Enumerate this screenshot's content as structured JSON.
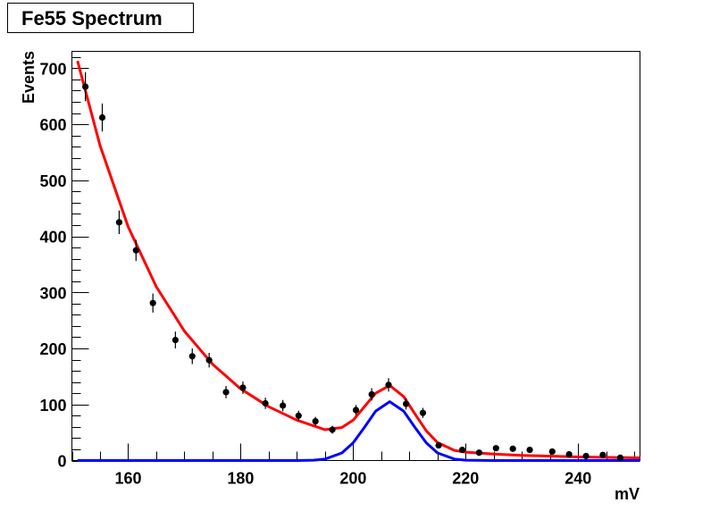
{
  "chart_data": {
    "type": "scatter",
    "title": "Fe55 Spectrum",
    "xlabel": "mV",
    "ylabel": "Events",
    "xlim": [
      150,
      251
    ],
    "ylim": [
      0,
      730
    ],
    "xticks": [
      160,
      180,
      200,
      220,
      240
    ],
    "yticks": [
      0,
      100,
      200,
      300,
      400,
      500,
      600,
      700
    ],
    "grid": false,
    "legend": "none",
    "colors": {
      "data": "#000000",
      "total_fit": "#ff0000",
      "peak_fit": "#0000ff"
    },
    "series": [
      {
        "kind": "points-with-errors",
        "x": [
          152.4,
          155.4,
          158.4,
          161.4,
          164.4,
          168.4,
          171.4,
          174.4,
          177.4,
          180.4,
          184.4,
          187.5,
          190.3,
          193.3,
          196.3,
          200.5,
          203.3,
          206.3,
          209.4,
          212.4,
          215.2,
          219.4,
          222.4,
          225.4,
          228.4,
          231.4,
          235.4,
          238.4,
          241.4,
          244.4,
          247.5
        ],
        "y": [
          667,
          612,
          425,
          375,
          281,
          215,
          186,
          179,
          122,
          130,
          102,
          98,
          80,
          70,
          55,
          90,
          118,
          135,
          101,
          85,
          27,
          19,
          14,
          22,
          21,
          19,
          16,
          11,
          8,
          10,
          5
        ],
        "yerr": [
          26,
          25,
          21,
          19,
          17,
          15,
          14,
          13,
          11,
          11,
          10,
          10,
          9,
          8,
          7,
          9,
          11,
          12,
          10,
          9,
          5,
          4,
          4,
          5,
          5,
          4,
          4,
          3,
          3,
          3,
          2
        ]
      },
      {
        "kind": "line",
        "x": [
          151,
          155,
          160,
          165,
          170,
          175,
          180,
          185,
          190,
          195,
          198,
          200,
          202,
          204,
          206.5,
          209,
          211,
          213,
          215,
          218,
          220,
          225,
          230,
          240,
          251
        ],
        "y": [
          713,
          562,
          417,
          310,
          231,
          172,
          128,
          96,
          72,
          55,
          59,
          72,
          96,
          120,
          134,
          114,
          83,
          53,
          32,
          18,
          15,
          11.5,
          9.3,
          6.4,
          4.8
        ]
      },
      {
        "kind": "line",
        "x": [
          151,
          190,
          193,
          195,
          198,
          200,
          202,
          204,
          206.5,
          209,
          211,
          213,
          215,
          218,
          220,
          225,
          251
        ],
        "y": [
          0,
          0,
          0.6,
          2.5,
          13.5,
          31.7,
          59,
          88,
          105,
          88,
          59,
          31.7,
          13.5,
          2.5,
          0.6,
          0,
          0
        ]
      }
    ]
  }
}
